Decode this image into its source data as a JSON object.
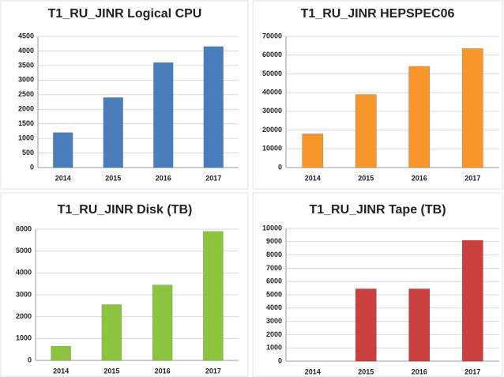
{
  "chart_data": [
    {
      "type": "bar",
      "title": "T1_RU_JINR Logical CPU",
      "categories": [
        "2014",
        "2015",
        "2016",
        "2017"
      ],
      "values": [
        1200,
        2400,
        3600,
        4150
      ],
      "color": "#4a7ebb",
      "ylim": [
        0,
        4500
      ],
      "yticks": [
        0,
        500,
        1000,
        1500,
        2000,
        2500,
        3000,
        3500,
        4000,
        4500
      ],
      "grid": true
    },
    {
      "type": "bar",
      "title": "T1_RU_JINR HEPSPEC06",
      "categories": [
        "2014",
        "2015",
        "2016",
        "2017"
      ],
      "values": [
        18000,
        39000,
        54000,
        63500
      ],
      "color": "#f7962a",
      "ylim": [
        0,
        70000
      ],
      "yticks": [
        0,
        10000,
        20000,
        30000,
        40000,
        50000,
        60000,
        70000
      ],
      "grid": true
    },
    {
      "type": "bar",
      "title": "T1_RU_JINR Disk (TB)",
      "categories": [
        "2014",
        "2015",
        "2016",
        "2017"
      ],
      "values": [
        650,
        2550,
        3450,
        5900
      ],
      "color": "#8dc43f",
      "ylim": [
        0,
        6000
      ],
      "yticks": [
        0,
        1000,
        2000,
        3000,
        4000,
        5000,
        6000
      ],
      "grid": true
    },
    {
      "type": "bar",
      "title": "T1_RU_JINR Tape (TB)",
      "categories": [
        "2014",
        "2015",
        "2016",
        "2017"
      ],
      "values": [
        0,
        5450,
        5450,
        9100
      ],
      "color": "#c9403e",
      "ylim": [
        0,
        10000
      ],
      "yticks": [
        0,
        1000,
        2000,
        3000,
        4000,
        5000,
        6000,
        7000,
        8000,
        9000,
        10000
      ],
      "grid": true
    }
  ]
}
